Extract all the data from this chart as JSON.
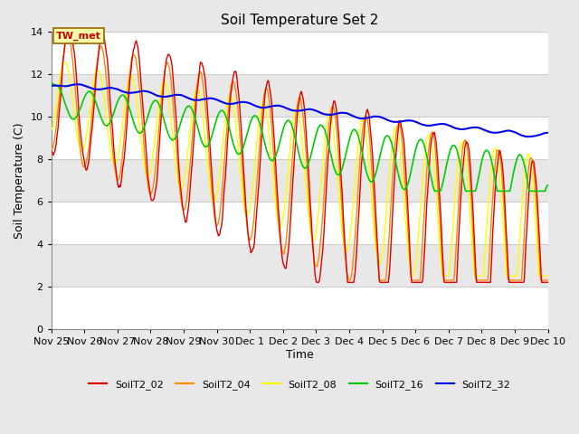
{
  "title": "Soil Temperature Set 2",
  "xlabel": "Time",
  "ylabel": "Soil Temperature (C)",
  "ylim": [
    0,
    14
  ],
  "yticks": [
    0,
    2,
    4,
    6,
    8,
    10,
    12,
    14
  ],
  "colors": {
    "SoilT2_02": "#dd0000",
    "SoilT2_04": "#ff8800",
    "SoilT2_08": "#ffff00",
    "SoilT2_16": "#00cc00",
    "SoilT2_32": "#0000ee"
  },
  "annotation_text": "TW_met",
  "annotation_color": "#cc0000",
  "annotation_bg": "#ffffaa",
  "legend_labels": [
    "SoilT2_02",
    "SoilT2_04",
    "SoilT2_08",
    "SoilT2_16",
    "SoilT2_32"
  ],
  "xtick_labels": [
    "Nov 25",
    "Nov 26",
    "Nov 27",
    "Nov 28",
    "Nov 29",
    "Nov 30",
    "Dec 1",
    "Dec 2",
    "Dec 3",
    "Dec 4",
    "Dec 5",
    "Dec 6",
    "Dec 7",
    "Dec 8",
    "Dec 9",
    "Dec 10"
  ],
  "figsize": [
    6.4,
    4.8
  ],
  "dpi": 100,
  "fig_bg": "#e8e8e8",
  "plot_bg": "#ffffff",
  "band_colors": [
    "#ffffff",
    "#e8e8e8"
  ]
}
